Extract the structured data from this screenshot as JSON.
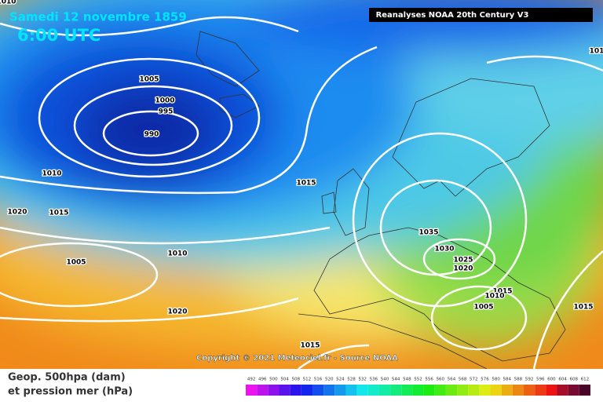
{
  "header": {
    "date": "Samedi 12 novembre 1859",
    "time": "6:00 UTC",
    "source_box": "Reanalyses NOAA 20th Century V3"
  },
  "copyright": "Copyright © 2021 Meteociel.fr - Source NOAA",
  "legend": {
    "line1": "Geop. 500hpa (dam)",
    "line2": "et pression mer (hPa)",
    "scale": [
      492,
      496,
      500,
      504,
      508,
      512,
      516,
      520,
      524,
      528,
      532,
      536,
      540,
      544,
      548,
      552,
      556,
      560,
      564,
      568,
      572,
      576,
      580,
      584,
      588,
      592,
      596,
      600,
      604,
      608,
      612
    ]
  },
  "isobar_labels": [
    "1010",
    "1005",
    "1000",
    "995",
    "990",
    "1010",
    "1020",
    "1015",
    "1005",
    "1010",
    "1020",
    "1015",
    "1035",
    "1030",
    "1025",
    "1020",
    "1015",
    "1010",
    "1005",
    "1015",
    "1015",
    "101"
  ]
}
